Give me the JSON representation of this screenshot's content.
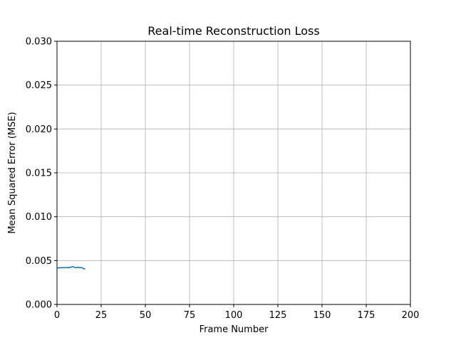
{
  "chart_data": {
    "type": "line",
    "title": "Real-time Reconstruction Loss",
    "xlabel": "Frame Number",
    "ylabel": "Mean Squared Error (MSE)",
    "xlim": [
      0,
      200
    ],
    "ylim": [
      0,
      0.03
    ],
    "x_ticks": [
      0,
      25,
      50,
      75,
      100,
      125,
      150,
      175,
      200
    ],
    "y_ticks": [
      0.0,
      0.005,
      0.01,
      0.015,
      0.02,
      0.025,
      0.03
    ],
    "x_tick_labels": [
      "0",
      "25",
      "50",
      "75",
      "100",
      "125",
      "150",
      "175",
      "200"
    ],
    "y_tick_labels": [
      "0.000",
      "0.005",
      "0.010",
      "0.015",
      "0.020",
      "0.025",
      "0.030"
    ],
    "grid": true,
    "series": [
      {
        "color": "#1f77b4",
        "x": [
          0,
          1,
          2,
          3,
          4,
          5,
          6,
          7,
          8,
          9,
          10,
          11,
          12,
          13,
          14,
          15,
          16
        ],
        "y": [
          0.00415,
          0.00418,
          0.00419,
          0.00418,
          0.0042,
          0.00419,
          0.00421,
          0.0042,
          0.00427,
          0.00432,
          0.00421,
          0.00419,
          0.00425,
          0.00418,
          0.00421,
          0.00408,
          0.00406
        ]
      }
    ]
  }
}
